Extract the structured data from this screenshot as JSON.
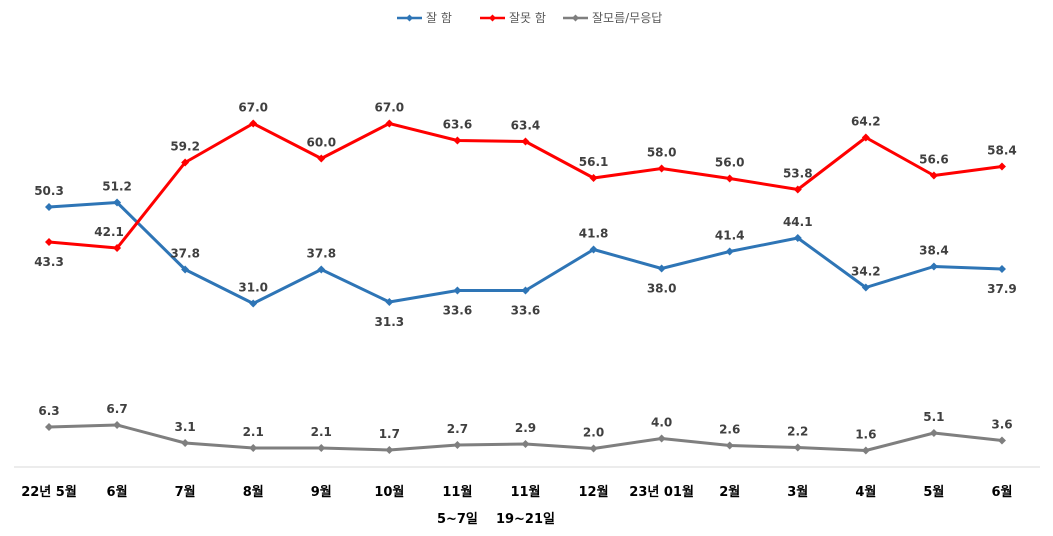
{
  "chart_data": {
    "type": "line",
    "title": "",
    "categories": [
      [
        "22년 5월"
      ],
      [
        "6월"
      ],
      [
        "7월"
      ],
      [
        "8월"
      ],
      [
        "9월"
      ],
      [
        "10월"
      ],
      [
        "11월",
        "5~7일"
      ],
      [
        "11월",
        "19~21일"
      ],
      [
        "12월"
      ],
      [
        "23년 01월"
      ],
      [
        "2월"
      ],
      [
        "3월"
      ],
      [
        "4월"
      ],
      [
        "5월"
      ],
      [
        "6월"
      ]
    ],
    "series": [
      {
        "name": "잘 함",
        "color": "#2E75B6",
        "values": [
          50.3,
          51.2,
          37.8,
          31.0,
          37.8,
          31.3,
          33.6,
          33.6,
          41.8,
          38.0,
          41.4,
          44.1,
          34.2,
          38.4,
          37.9
        ]
      },
      {
        "name": "잘못 함",
        "color": "#FF0000",
        "values": [
          43.3,
          42.1,
          59.2,
          67.0,
          60.0,
          67.0,
          63.6,
          63.4,
          56.1,
          58.0,
          56.0,
          53.8,
          64.2,
          56.6,
          58.4
        ]
      },
      {
        "name": "잘모름/무응답",
        "color": "#7F7F7F",
        "values": [
          6.3,
          6.7,
          3.1,
          2.1,
          2.1,
          1.7,
          2.7,
          2.9,
          2.0,
          4.0,
          2.6,
          2.2,
          1.6,
          5.1,
          3.6
        ]
      }
    ],
    "legend_position": "top",
    "grid": false,
    "ylim": [
      0,
      72
    ]
  }
}
